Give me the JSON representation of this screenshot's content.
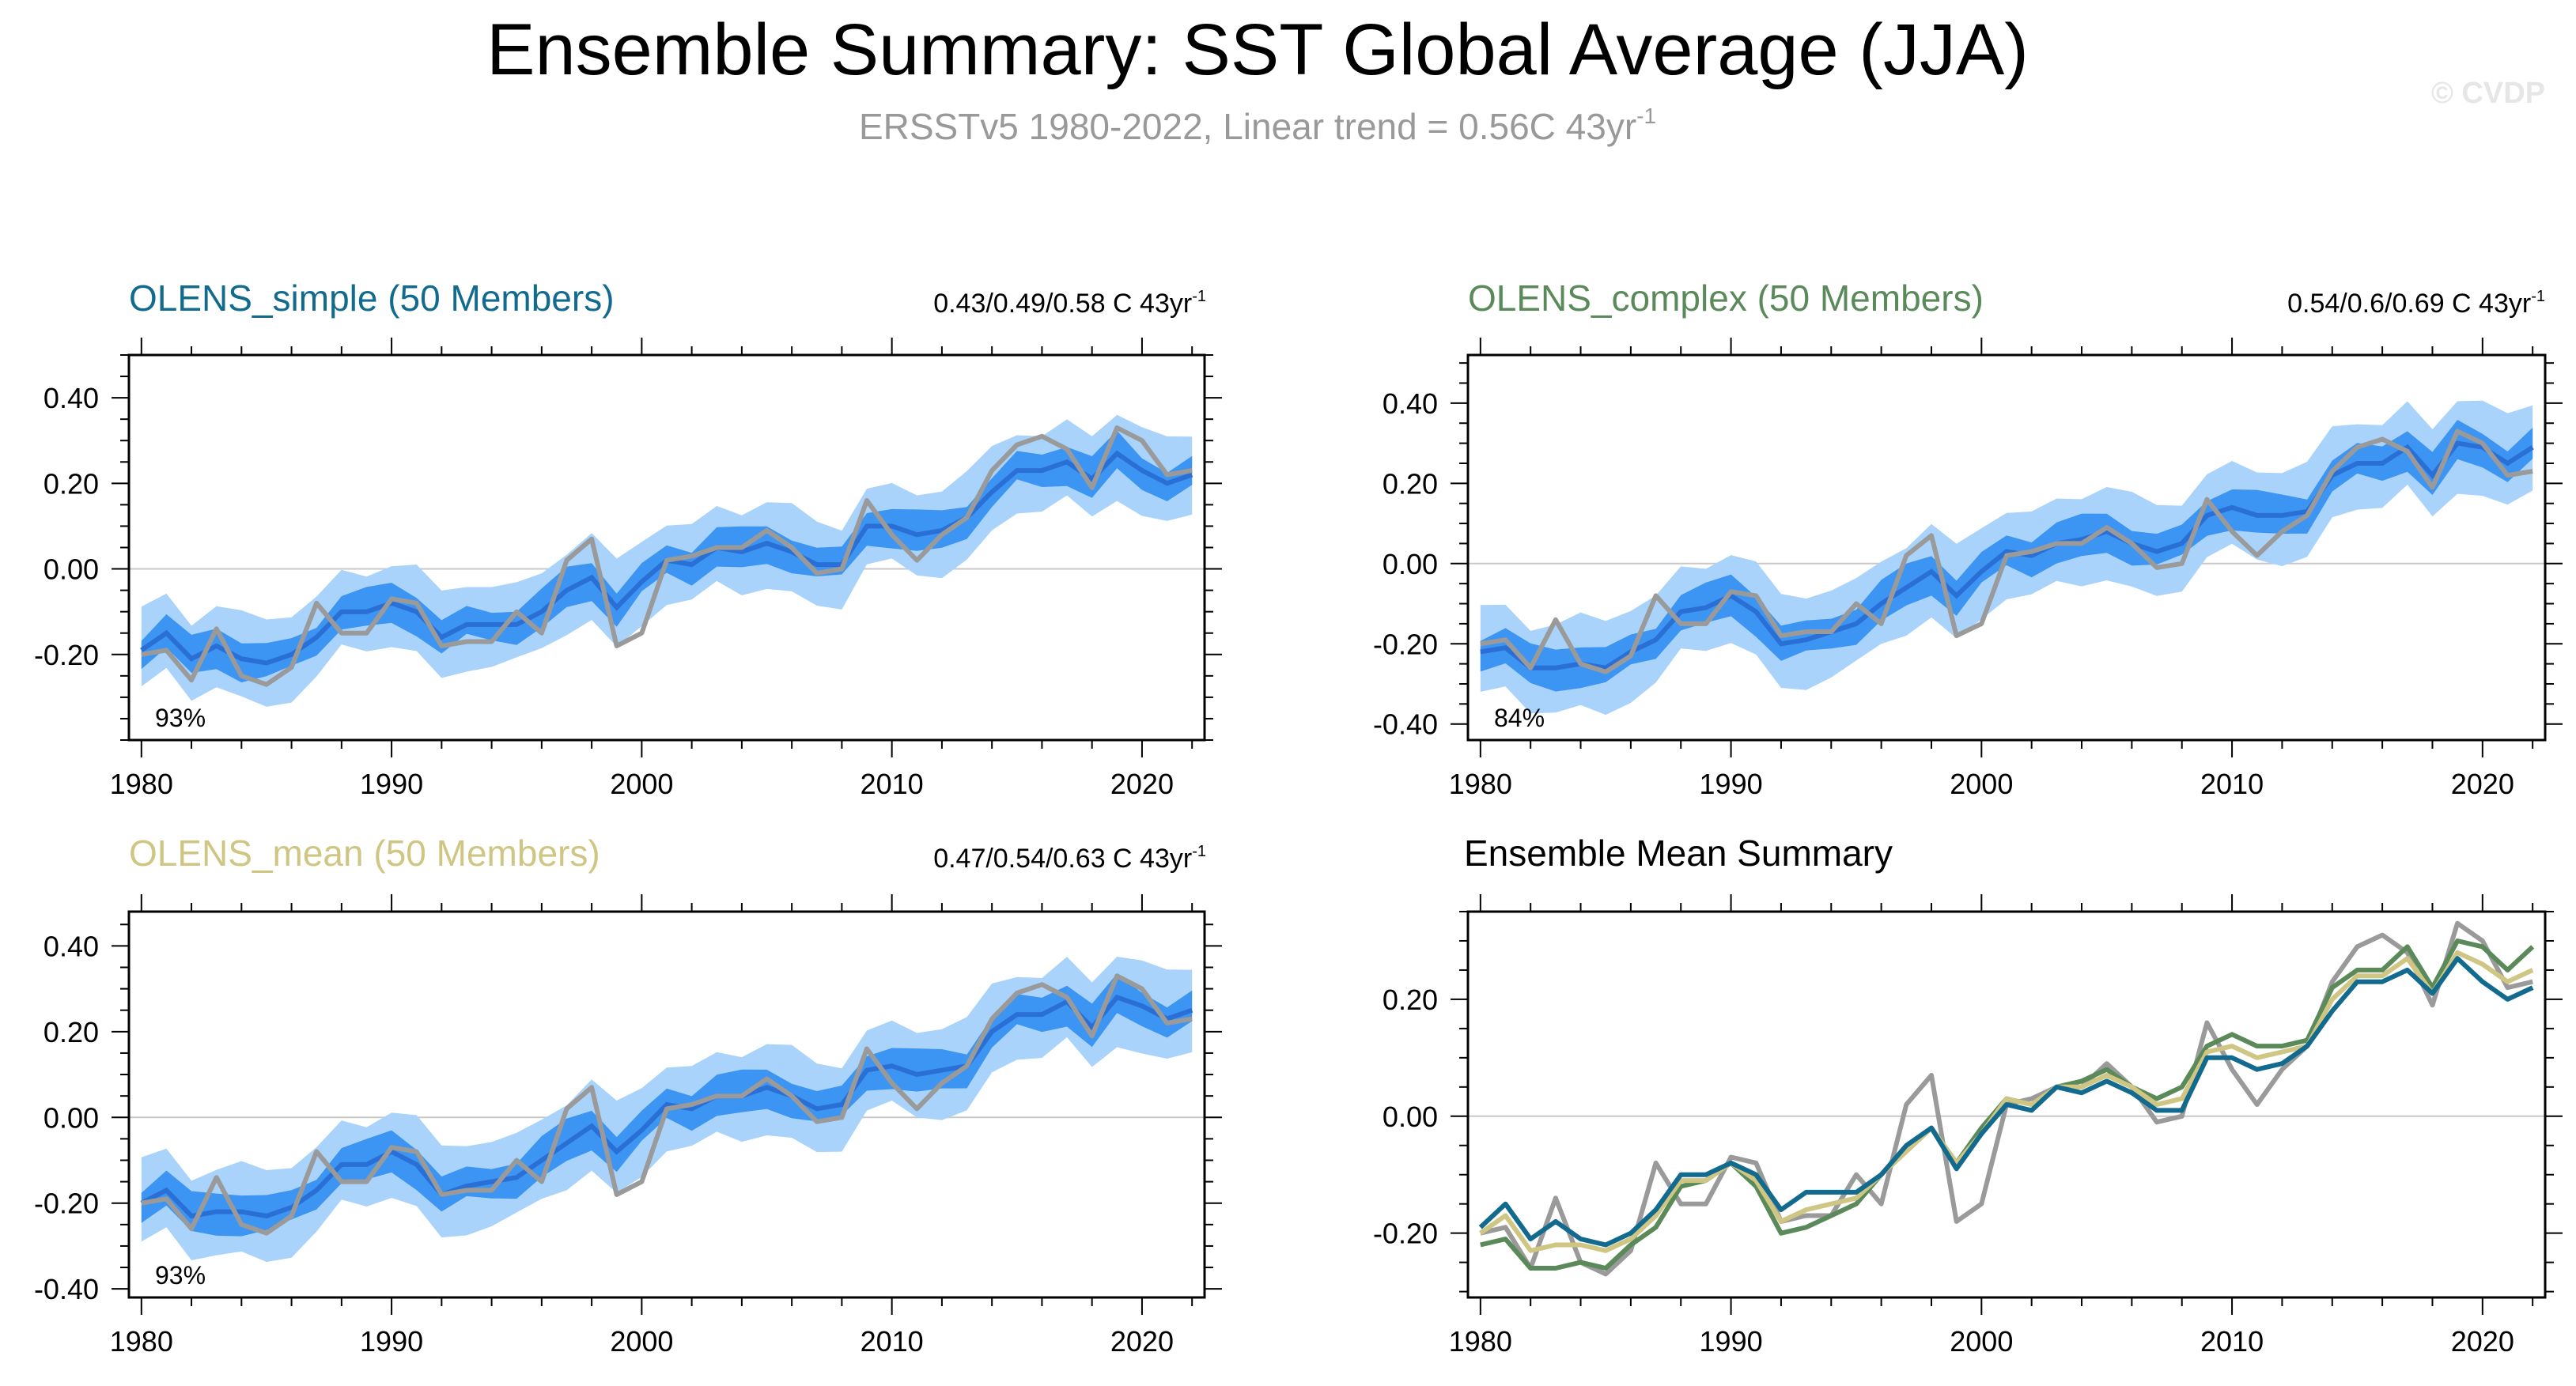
{
  "header": {
    "title": "Ensemble Summary: SST Global Average (JJA)",
    "subtitle": "ERSSTv5 1980-2022, Linear trend = 0.56C 43yr",
    "subtitle_sup": "-1",
    "watermark": "© CVDP"
  },
  "colors": {
    "obs": "#9a9a9a",
    "band_outer": "#a9d3fb",
    "band_inner": "#3c95f2",
    "band_mean": "#2a6fd6",
    "simple": "#126b8f",
    "complex": "#5b8a5a",
    "mean": "#cfc684"
  },
  "observed": {
    "x_start": 1980,
    "values": [
      -0.2,
      -0.19,
      -0.26,
      -0.14,
      -0.25,
      -0.27,
      -0.23,
      -0.08,
      -0.15,
      -0.15,
      -0.07,
      -0.08,
      -0.18,
      -0.17,
      -0.17,
      -0.1,
      -0.15,
      0.02,
      0.07,
      -0.18,
      -0.15,
      0.02,
      0.03,
      0.05,
      0.05,
      0.09,
      0.05,
      -0.01,
      0.0,
      0.16,
      0.08,
      0.02,
      0.08,
      0.12,
      0.23,
      0.29,
      0.31,
      0.28,
      0.19,
      0.33,
      0.3,
      0.22,
      0.23
    ]
  },
  "chart_data": [
    {
      "type": "area",
      "title": "OLENS_simple (50 Members)",
      "title_color": "#126b8f",
      "trend_label": "0.43/0.49/0.58 C 43yr",
      "trend_sup": "-1",
      "percent_label": "93%",
      "xlim": [
        1979.5,
        2022.5
      ],
      "ylim": [
        -0.4,
        0.5
      ],
      "yticks": [
        -0.2,
        0.0,
        0.2,
        0.4
      ],
      "ytick_labels": [
        "-0.20",
        "0.00",
        "0.20",
        "0.40"
      ],
      "xticks": [
        1980,
        1990,
        2000,
        2010,
        2020
      ],
      "xtick_labels": [
        "1980",
        "1990",
        "2000",
        "2010",
        "2020"
      ],
      "x_start": 1980,
      "outer_half_width": 0.095,
      "inner_half_width": 0.04,
      "ensemble_mean": [
        -0.19,
        -0.15,
        -0.21,
        -0.18,
        -0.21,
        -0.22,
        -0.2,
        -0.16,
        -0.1,
        -0.1,
        -0.08,
        -0.1,
        -0.16,
        -0.13,
        -0.13,
        -0.13,
        -0.1,
        -0.05,
        -0.02,
        -0.09,
        -0.03,
        0.02,
        0.01,
        0.05,
        0.04,
        0.06,
        0.04,
        0.01,
        0.01,
        0.1,
        0.1,
        0.08,
        0.09,
        0.12,
        0.18,
        0.23,
        0.23,
        0.25,
        0.21,
        0.27,
        0.23,
        0.2,
        0.22
      ]
    },
    {
      "type": "area",
      "title": "OLENS_complex (50 Members)",
      "title_color": "#5b8a5a",
      "trend_label": "0.54/0.6/0.69 C 43yr",
      "trend_sup": "-1",
      "percent_label": "84%",
      "xlim": [
        1979.5,
        2022.5
      ],
      "ylim": [
        -0.44,
        0.52
      ],
      "yticks": [
        -0.4,
        -0.2,
        0.0,
        0.2,
        0.4
      ],
      "ytick_labels": [
        "-0.40",
        "-0.20",
        "0.00",
        "0.20",
        "0.40"
      ],
      "xticks": [
        1980,
        1990,
        2000,
        2010,
        2020
      ],
      "xtick_labels": [
        "1980",
        "1990",
        "2000",
        "2010",
        "2020"
      ],
      "x_start": 1980,
      "outer_half_width": 0.11,
      "inner_half_width": 0.045,
      "ensemble_mean": [
        -0.22,
        -0.21,
        -0.26,
        -0.26,
        -0.25,
        -0.26,
        -0.22,
        -0.19,
        -0.12,
        -0.11,
        -0.08,
        -0.12,
        -0.2,
        -0.19,
        -0.17,
        -0.15,
        -0.1,
        -0.06,
        -0.02,
        -0.08,
        -0.02,
        0.03,
        0.02,
        0.05,
        0.06,
        0.08,
        0.05,
        0.03,
        0.05,
        0.12,
        0.14,
        0.12,
        0.12,
        0.13,
        0.22,
        0.25,
        0.25,
        0.29,
        0.22,
        0.3,
        0.29,
        0.25,
        0.29
      ]
    },
    {
      "type": "area",
      "title": "OLENS_mean (50 Members)",
      "title_color": "#cfc684",
      "trend_label": "0.47/0.54/0.63 C 43yr",
      "trend_sup": "-1",
      "percent_label": "93%",
      "xlim": [
        1979.5,
        2022.5
      ],
      "ylim": [
        -0.42,
        0.48
      ],
      "yticks": [
        -0.4,
        -0.2,
        0.0,
        0.2,
        0.4
      ],
      "ytick_labels": [
        "-0.40",
        "-0.20",
        "0.00",
        "0.20",
        "0.40"
      ],
      "xticks": [
        1980,
        1990,
        2000,
        2010,
        2020
      ],
      "xtick_labels": [
        "1980",
        "1990",
        "2000",
        "2010",
        "2020"
      ],
      "x_start": 1980,
      "outer_half_width": 0.1,
      "inner_half_width": 0.042,
      "ensemble_mean": [
        -0.2,
        -0.17,
        -0.23,
        -0.22,
        -0.22,
        -0.23,
        -0.21,
        -0.17,
        -0.11,
        -0.11,
        -0.08,
        -0.11,
        -0.18,
        -0.16,
        -0.15,
        -0.14,
        -0.1,
        -0.06,
        -0.02,
        -0.08,
        -0.03,
        0.03,
        0.02,
        0.05,
        0.05,
        0.07,
        0.05,
        0.02,
        0.03,
        0.11,
        0.12,
        0.1,
        0.11,
        0.12,
        0.2,
        0.24,
        0.24,
        0.27,
        0.21,
        0.28,
        0.26,
        0.23,
        0.25
      ]
    },
    {
      "type": "line",
      "title": "Ensemble Mean Summary",
      "title_color": "#000000",
      "xlim": [
        1979.5,
        2022.5
      ],
      "ylim": [
        -0.31,
        0.35
      ],
      "yticks": [
        -0.2,
        0.0,
        0.2
      ],
      "ytick_labels": [
        "-0.20",
        "0.00",
        "0.20"
      ],
      "xticks": [
        1980,
        1990,
        2000,
        2010,
        2020
      ],
      "xtick_labels": [
        "1980",
        "1990",
        "2000",
        "2010",
        "2020"
      ],
      "x_start": 1980,
      "series_colors": [
        "#5b8a5a",
        "#cfc684",
        "#126b8f"
      ],
      "series": [
        {
          "values": [
            -0.22,
            -0.21,
            -0.26,
            -0.26,
            -0.25,
            -0.26,
            -0.22,
            -0.19,
            -0.12,
            -0.11,
            -0.08,
            -0.12,
            -0.2,
            -0.19,
            -0.17,
            -0.15,
            -0.1,
            -0.06,
            -0.02,
            -0.08,
            -0.02,
            0.03,
            0.02,
            0.05,
            0.06,
            0.08,
            0.05,
            0.03,
            0.05,
            0.12,
            0.14,
            0.12,
            0.12,
            0.13,
            0.22,
            0.25,
            0.25,
            0.29,
            0.22,
            0.3,
            0.29,
            0.25,
            0.29
          ]
        },
        {
          "values": [
            -0.2,
            -0.17,
            -0.23,
            -0.22,
            -0.22,
            -0.23,
            -0.21,
            -0.17,
            -0.11,
            -0.11,
            -0.08,
            -0.11,
            -0.18,
            -0.16,
            -0.15,
            -0.14,
            -0.1,
            -0.06,
            -0.02,
            -0.08,
            -0.03,
            0.03,
            0.02,
            0.05,
            0.05,
            0.07,
            0.05,
            0.02,
            0.03,
            0.11,
            0.12,
            0.1,
            0.11,
            0.12,
            0.2,
            0.24,
            0.24,
            0.27,
            0.21,
            0.28,
            0.26,
            0.23,
            0.25
          ]
        },
        {
          "values": [
            -0.19,
            -0.15,
            -0.21,
            -0.18,
            -0.21,
            -0.22,
            -0.2,
            -0.16,
            -0.1,
            -0.1,
            -0.08,
            -0.1,
            -0.16,
            -0.13,
            -0.13,
            -0.13,
            -0.1,
            -0.05,
            -0.02,
            -0.09,
            -0.03,
            0.02,
            0.01,
            0.05,
            0.04,
            0.06,
            0.04,
            0.01,
            0.01,
            0.1,
            0.1,
            0.08,
            0.09,
            0.12,
            0.18,
            0.23,
            0.23,
            0.25,
            0.21,
            0.27,
            0.23,
            0.2,
            0.22
          ]
        }
      ]
    }
  ]
}
